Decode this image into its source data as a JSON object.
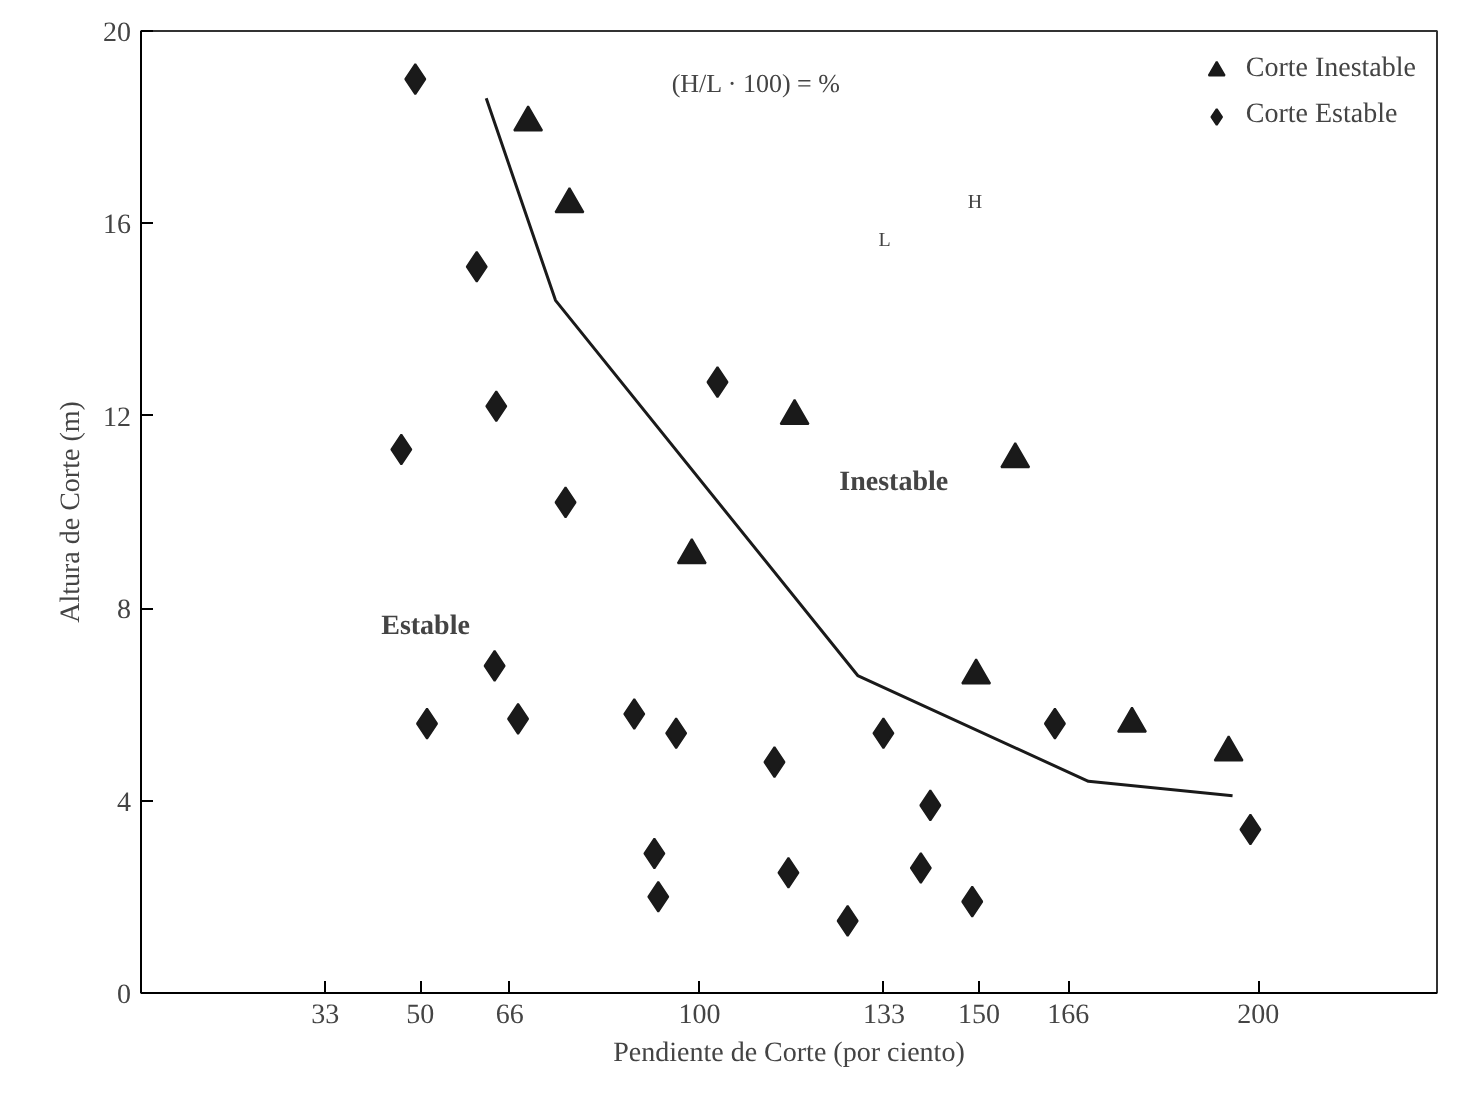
{
  "chart_data": {
    "type": "scatter",
    "xlabel": "Pendiente de Corte (por ciento)",
    "ylabel": "Altura de Corte (m)",
    "xlim": [
      0,
      232
    ],
    "xticks": [
      33,
      50,
      66,
      100,
      133,
      150,
      166,
      200
    ],
    "ylim": [
      0,
      20
    ],
    "yticks": [
      0,
      4,
      8,
      12,
      16,
      20
    ],
    "grid": false,
    "legend": "top right",
    "annotations": [
      "(H/L · 100) = %",
      "H",
      "L",
      "Inestable",
      "Estable"
    ],
    "series": [
      {
        "name": "Corte Inestable",
        "color": "#1a1a1a",
        "marker": "triangle",
        "x": [
          69.3,
          76.7,
          98.6,
          117.0,
          156.5,
          149.5,
          177.4,
          194.7
        ],
        "values": [
          18.1,
          16.4,
          9.1,
          12.0,
          11.1,
          6.6,
          5.6,
          5.0
        ]
      },
      {
        "name": "Corte Estable",
        "color": "#1a1a1a",
        "marker": "diamond",
        "x": [
          49.1,
          60.1,
          63.6,
          46.6,
          76.0,
          103.2,
          51.2,
          63.3,
          67.5,
          88.3,
          95.8,
          91.9,
          92.6,
          113.4,
          132.9,
          141.3,
          115.9,
          139.6,
          126.5,
          148.8,
          163.6,
          198.6
        ],
        "values": [
          19.0,
          15.1,
          12.2,
          11.3,
          10.2,
          12.7,
          5.6,
          6.8,
          5.7,
          5.8,
          5.4,
          2.9,
          2.0,
          4.8,
          5.4,
          3.9,
          2.5,
          2.6,
          1.5,
          1.9,
          5.6,
          3.4
        ]
      },
      {
        "type": "line",
        "color": "#1a1a1a",
        "x": [
          61.8,
          74.2,
          128.3,
          169.6,
          195.4
        ],
        "values": [
          18.6,
          14.4,
          6.6,
          4.4,
          4.1
        ]
      }
    ]
  }
}
